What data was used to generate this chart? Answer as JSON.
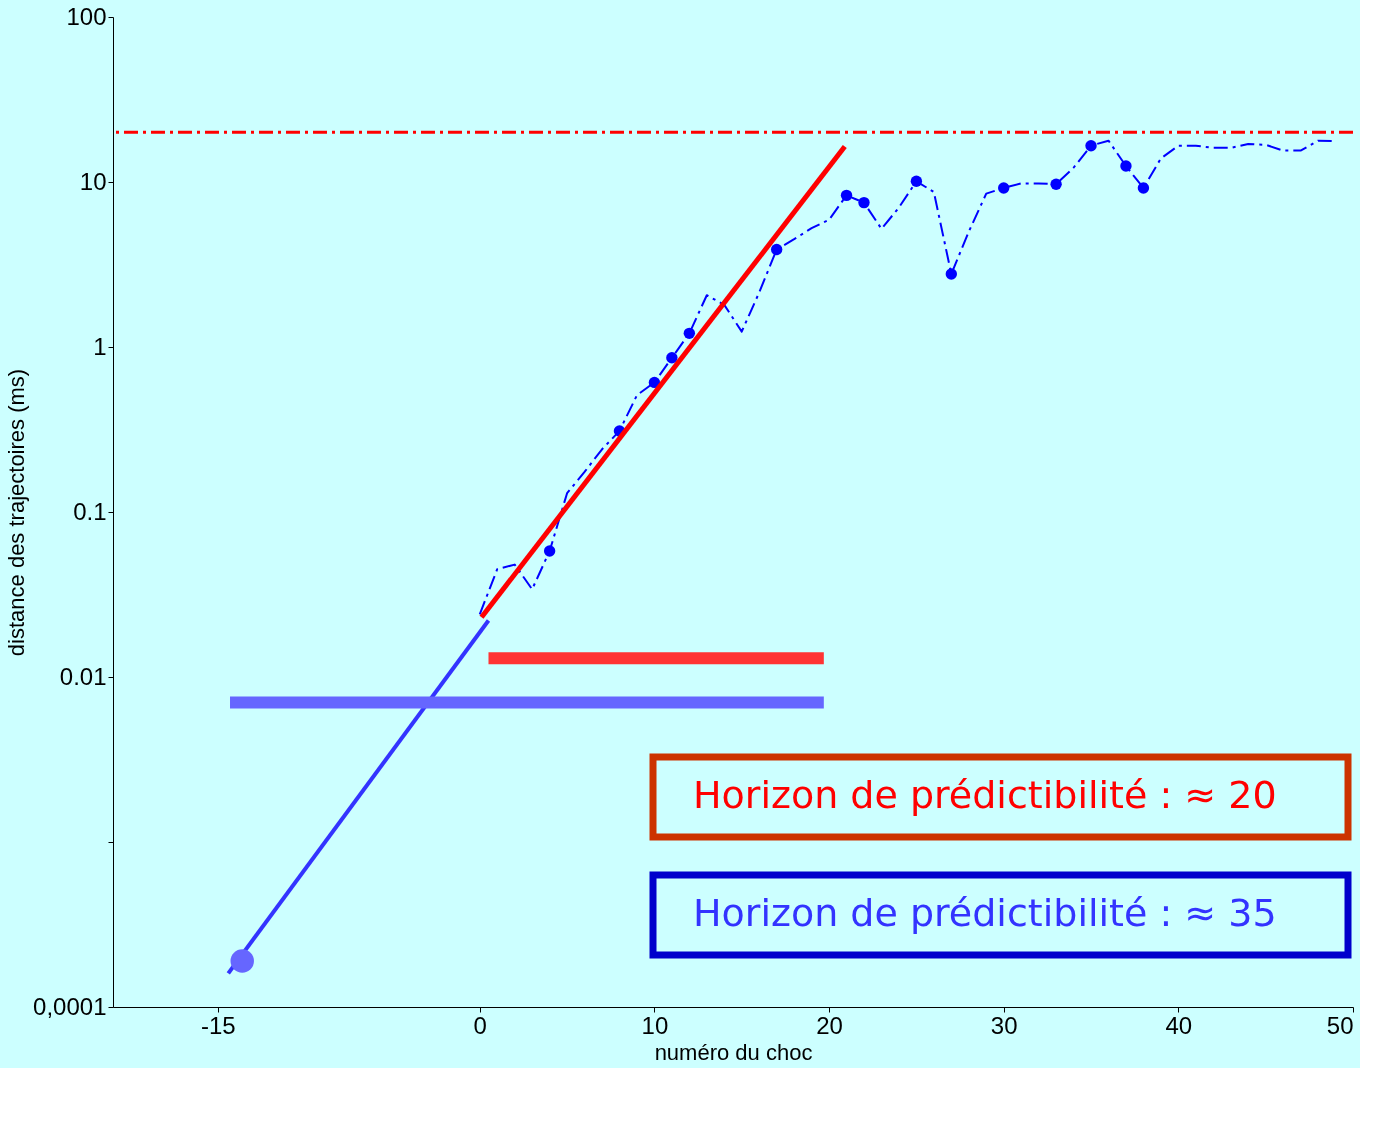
{
  "chart_data": {
    "type": "line",
    "xlabel": "numéro du choc",
    "ylabel": "distance des trajectoires (ms)",
    "xlim": [
      -21,
      50
    ],
    "xticks": [
      -15,
      0,
      10,
      20,
      30,
      40,
      50
    ],
    "ylim": [
      0.0001,
      100
    ],
    "yticks": [
      {
        "value": 0.0001,
        "label": "0,0001"
      },
      {
        "value": 0.001,
        "label": null
      },
      0.01,
      0.1,
      1,
      10,
      100
    ],
    "log": "y",
    "grid": false,
    "series": [
      {
        "color": "#0000ff",
        "line_style": "dashed",
        "marker": "none",
        "x": [
          0,
          1,
          2,
          3,
          4,
          5,
          6,
          7,
          8,
          9,
          10,
          11,
          12,
          13,
          14,
          15,
          16,
          17,
          18,
          19,
          20,
          21,
          22,
          23,
          24,
          25,
          26,
          27,
          28,
          29,
          30,
          31,
          32,
          33,
          34,
          35,
          36,
          37,
          38,
          39,
          40,
          41,
          42,
          43,
          44,
          45,
          46,
          47,
          48,
          49
        ],
        "values": [
          0.024,
          0.045,
          0.048,
          0.034,
          0.058,
          0.13,
          0.175,
          0.24,
          0.31,
          0.51,
          0.61,
          0.86,
          1.21,
          2.06,
          1.8,
          1.24,
          2.14,
          3.9,
          4.5,
          5.25,
          5.9,
          8.3,
          7.5,
          5.2,
          7.0,
          10.1,
          8.7,
          2.77,
          5.0,
          8.5,
          9.2,
          9.8,
          9.8,
          9.7,
          12.2,
          16.6,
          17.8,
          12.5,
          9.2,
          13.9,
          16.6,
          16.6,
          16.1,
          16.1,
          17.0,
          16.8,
          15.5,
          15.5,
          17.8,
          17.7
        ]
      },
      {
        "type": "scatter",
        "color": "#0000ff",
        "marker": "circle",
        "x": [
          4,
          8,
          10,
          11,
          12,
          17,
          21,
          22,
          25,
          27,
          30,
          33,
          35,
          37,
          38
        ],
        "values": [
          0.058,
          0.31,
          0.61,
          0.86,
          1.21,
          3.9,
          8.3,
          7.5,
          10.1,
          2.77,
          9.2,
          9.7,
          16.6,
          12.5,
          9.2
        ]
      },
      {
        "color": "#ff0000",
        "line_style": "solid",
        "marker": "none",
        "x": [
          0.1,
          20.9
        ],
        "values": [
          0.023,
          16.4
        ]
      },
      {
        "color": "#3333ff",
        "line_style": "solid",
        "marker": "none",
        "x": [
          -14.4,
          0.5
        ],
        "values": [
          0.00016,
          0.022
        ]
      },
      {
        "type": "scatter",
        "color": "#6666ff",
        "marker": "circle",
        "x": [
          -13.6
        ],
        "values": [
          0.00019
        ]
      },
      {
        "color": "#ff3333",
        "line_style": "solid",
        "marker": "none",
        "x": [
          0.5,
          19.7
        ],
        "values": [
          0.013,
          0.013
        ]
      },
      {
        "color": "#6666ff",
        "line_style": "solid",
        "marker": "none",
        "x": [
          -14.3,
          19.7
        ],
        "values": [
          0.007,
          0.007
        ]
      }
    ],
    "ref_lines": [
      {
        "axis": "y",
        "value": 20,
        "color": "#ff0000",
        "line_style": "dashed"
      }
    ],
    "annotations": [
      "Horizon de prédictibilité : ≈ 20",
      "Horizon de prédictibilité : ≈ 35"
    ]
  }
}
